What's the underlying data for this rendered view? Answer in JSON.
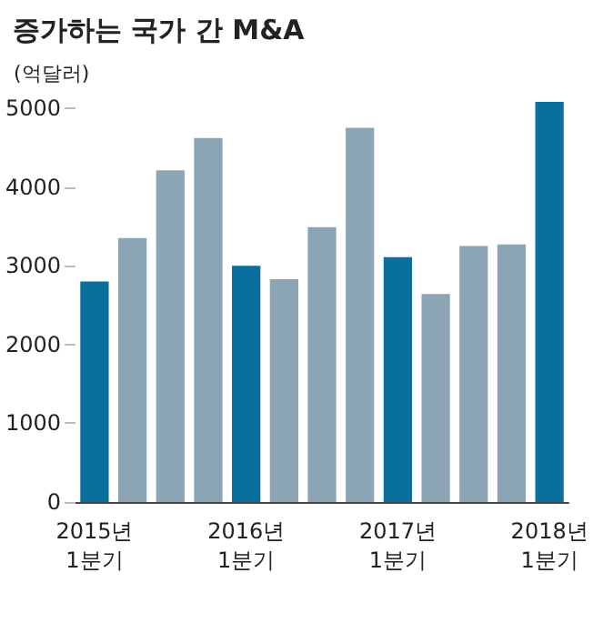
{
  "chart_data": {
    "type": "bar",
    "title": "증가하는 국가 간 M&A",
    "ylabel": "(억달러)",
    "categories": [
      "2015년\n1분기",
      null,
      null,
      null,
      "2016년\n1분기",
      null,
      null,
      null,
      "2017년\n1분기",
      null,
      null,
      null,
      "2018년\n1분기"
    ],
    "values": [
      2800,
      3350,
      4210,
      4620,
      3000,
      2830,
      3490,
      4750,
      3110,
      2640,
      3250,
      3270,
      5080
    ],
    "colors": [
      "#0b6f9e",
      "#8ba5b5",
      "#8ba5b5",
      "#8ba5b5",
      "#0b6f9e",
      "#8ba5b5",
      "#8ba5b5",
      "#8ba5b5",
      "#0b6f9e",
      "#8ba5b5",
      "#8ba5b5",
      "#8ba5b5",
      "#0b6f9e"
    ],
    "ylim": [
      0,
      5080
    ],
    "yticks": [
      0,
      1000,
      2000,
      3000,
      4000,
      5000
    ],
    "grid": false
  }
}
